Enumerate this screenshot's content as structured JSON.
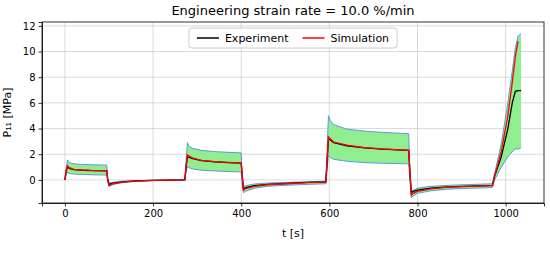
{
  "chart_data": {
    "type": "line",
    "title": "Engineering strain rate = 10.0 %/min",
    "xlabel": "t [s]",
    "ylabel": "P₁₁ [MPa]",
    "x": [
      0,
      3,
      6,
      10,
      20,
      40,
      60,
      95,
      97,
      100,
      110,
      130,
      160,
      200,
      272,
      275,
      278,
      282,
      290,
      310,
      340,
      370,
      400,
      402,
      405,
      410,
      430,
      460,
      500,
      550,
      592,
      595,
      598,
      602,
      610,
      640,
      680,
      720,
      780,
      783,
      786,
      790,
      800,
      830,
      870,
      920,
      970,
      975,
      990,
      1005,
      1015,
      1022,
      1028,
      1035
    ],
    "series": [
      {
        "name": "Experiment",
        "color": "#000000",
        "values": [
          0,
          0.7,
          1.0,
          0.9,
          0.8,
          0.75,
          0.72,
          0.7,
          0.1,
          -0.35,
          -0.25,
          -0.15,
          -0.08,
          -0.04,
          0.0,
          1.0,
          1.8,
          1.75,
          1.65,
          1.5,
          1.4,
          1.35,
          1.3,
          0.5,
          -0.7,
          -0.6,
          -0.45,
          -0.35,
          -0.28,
          -0.2,
          -0.15,
          1.5,
          3.2,
          3.1,
          2.9,
          2.65,
          2.5,
          2.4,
          2.3,
          0.5,
          -1.0,
          -0.9,
          -0.8,
          -0.65,
          -0.55,
          -0.48,
          -0.42,
          0.3,
          1.8,
          4.0,
          6.0,
          6.9,
          6.95,
          6.95
        ]
      },
      {
        "name": "Simulation",
        "color": "#ff0000",
        "values": [
          0,
          0.8,
          1.1,
          0.95,
          0.82,
          0.77,
          0.74,
          0.72,
          0.0,
          -0.45,
          -0.3,
          -0.17,
          -0.09,
          -0.04,
          0.0,
          1.1,
          1.95,
          1.85,
          1.7,
          1.52,
          1.42,
          1.36,
          1.3,
          0.4,
          -0.8,
          -0.68,
          -0.5,
          -0.38,
          -0.3,
          -0.22,
          -0.17,
          1.6,
          3.35,
          3.2,
          2.95,
          2.7,
          2.52,
          2.42,
          2.3,
          0.4,
          -1.2,
          -1.05,
          -0.9,
          -0.7,
          -0.57,
          -0.5,
          -0.44,
          0.3,
          2.2,
          5.0,
          7.6,
          9.6,
          10.8,
          null
        ]
      }
    ],
    "band": {
      "color": "#90ee90",
      "upper": [
        0,
        1.0,
        1.55,
        1.35,
        1.25,
        1.2,
        1.18,
        1.15,
        0.1,
        -0.25,
        -0.18,
        -0.1,
        -0.06,
        -0.03,
        0.0,
        1.5,
        2.9,
        2.6,
        2.45,
        2.3,
        2.2,
        2.15,
        2.1,
        0.3,
        -0.55,
        -0.45,
        -0.32,
        -0.25,
        -0.2,
        -0.15,
        -0.1,
        2.5,
        5.0,
        4.6,
        4.3,
        3.95,
        3.8,
        3.7,
        3.6,
        0.3,
        -0.9,
        -0.8,
        -0.65,
        -0.5,
        -0.42,
        -0.36,
        -0.3,
        0.5,
        2.8,
        6.0,
        8.5,
        10.3,
        11.2,
        11.4
      ],
      "lower": [
        0,
        0.4,
        0.6,
        0.5,
        0.45,
        0.42,
        0.4,
        0.38,
        -0.1,
        -0.5,
        -0.35,
        -0.22,
        -0.12,
        -0.06,
        0.0,
        0.6,
        1.05,
        0.95,
        0.85,
        0.75,
        0.7,
        0.65,
        0.62,
        -0.2,
        -1.0,
        -0.88,
        -0.65,
        -0.5,
        -0.42,
        -0.35,
        -0.3,
        0.9,
        1.9,
        1.75,
        1.6,
        1.45,
        1.35,
        1.3,
        1.25,
        -0.2,
        -1.4,
        -1.25,
        -1.05,
        -0.85,
        -0.72,
        -0.65,
        -0.6,
        0.0,
        1.0,
        1.8,
        2.2,
        2.4,
        2.4,
        2.5
      ]
    },
    "xlim": [
      -52,
      1087
    ],
    "ylim": [
      -1.8,
      12.3
    ],
    "xticks": [
      0,
      200,
      400,
      600,
      800,
      1000
    ],
    "yticks": [
      0,
      2,
      4,
      6,
      8,
      10,
      12
    ],
    "grid": true,
    "legend": "upper center"
  }
}
